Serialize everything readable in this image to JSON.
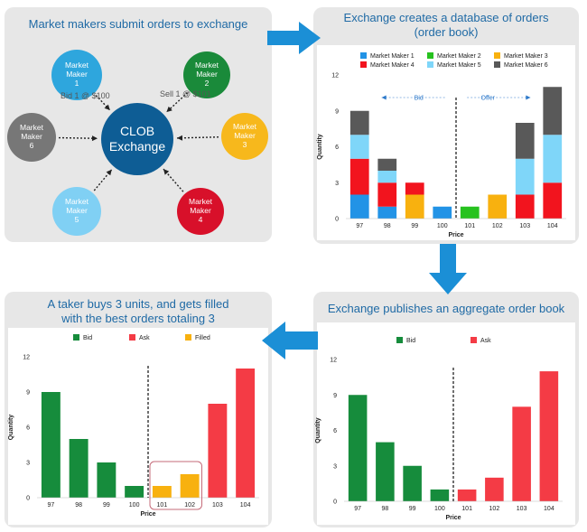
{
  "panels": {
    "p1": {
      "title": "Market makers submit orders to exchange"
    },
    "p2": {
      "title_line1": "Exchange creates a database of orders",
      "title_line2": "(order book)"
    },
    "p3": {
      "title": "Exchange publishes an aggregate order book"
    },
    "p4": {
      "title_line1": "A taker buys 3 units, and gets filled",
      "title_line2": "with the best orders totaling 3"
    }
  },
  "network": {
    "center": {
      "line1": "CLOB",
      "line2": "Exchange",
      "color": "#0e5d95"
    },
    "nodes": [
      {
        "id": "mm1",
        "line1": "Market",
        "line2": "Maker",
        "line3": "1",
        "color": "#2ea6dd"
      },
      {
        "id": "mm2",
        "line1": "Market",
        "line2": "Maker",
        "line3": "2",
        "color": "#1a8a3a"
      },
      {
        "id": "mm3",
        "line1": "Market",
        "line2": "Maker",
        "line3": "3",
        "color": "#f7b81c"
      },
      {
        "id": "mm4",
        "line1": "Market",
        "line2": "Maker",
        "line3": "4",
        "color": "#d8102a"
      },
      {
        "id": "mm5",
        "line1": "Market",
        "line2": "Maker",
        "line3": "5",
        "color": "#80d0f4"
      },
      {
        "id": "mm6",
        "line1": "Market",
        "line2": "Maker",
        "line3": "6",
        "color": "#777777"
      }
    ],
    "labels": {
      "bid": "Bid 1 @ $100",
      "sell": "Sell 1 @ $101"
    }
  },
  "chart_data": [
    {
      "id": "orderbook",
      "type": "bar",
      "stacked": true,
      "categories": [
        "97",
        "98",
        "99",
        "100",
        "101",
        "102",
        "103",
        "104"
      ],
      "series": [
        {
          "name": "Market Maker 1",
          "color": "#2293e6",
          "values": [
            2,
            1,
            0,
            1,
            0,
            0,
            0,
            0
          ]
        },
        {
          "name": "Market Maker 2",
          "color": "#27c21f",
          "values": [
            0,
            0,
            0,
            0,
            1,
            0,
            0,
            0
          ]
        },
        {
          "name": "Market Maker 3",
          "color": "#f8b10f",
          "values": [
            0,
            0,
            2,
            0,
            0,
            2,
            0,
            0
          ]
        },
        {
          "name": "Market Maker 4",
          "color": "#f2141e",
          "values": [
            3,
            2,
            1,
            0,
            0,
            0,
            2,
            3
          ]
        },
        {
          "name": "Market Maker 5",
          "color": "#7fd6f9",
          "values": [
            2,
            1,
            0,
            0,
            0,
            0,
            3,
            4
          ]
        },
        {
          "name": "Market Maker 6",
          "color": "#595959",
          "values": [
            2,
            1,
            0,
            0,
            0,
            0,
            3,
            4
          ]
        }
      ],
      "annotations": {
        "bid": "Bid",
        "offer": "Offer"
      },
      "xlabel": "Price",
      "ylabel": "Quantity",
      "yticks": [
        "0",
        "3",
        "6",
        "9",
        "12"
      ],
      "ylim": [
        0,
        12
      ],
      "legend": "top"
    },
    {
      "id": "aggregate",
      "type": "bar",
      "categories": [
        "97",
        "98",
        "99",
        "100",
        "101",
        "102",
        "103",
        "104"
      ],
      "series": [
        {
          "name": "Bid",
          "color": "#168c3c",
          "values": [
            9,
            5,
            3,
            1,
            0,
            0,
            0,
            0
          ]
        },
        {
          "name": "Ask",
          "color": "#f43b45",
          "values": [
            0,
            0,
            0,
            0,
            1,
            2,
            8,
            11
          ]
        }
      ],
      "xlabel": "Price",
      "ylabel": "Quantity",
      "yticks": [
        "0",
        "3",
        "6",
        "9",
        "12"
      ],
      "ylim": [
        0,
        12
      ],
      "legend": "top"
    },
    {
      "id": "taker",
      "type": "bar",
      "categories": [
        "97",
        "98",
        "99",
        "100",
        "101",
        "102",
        "103",
        "104"
      ],
      "series": [
        {
          "name": "Bid",
          "color": "#168c3c",
          "values": [
            9,
            5,
            3,
            1,
            0,
            0,
            0,
            0
          ]
        },
        {
          "name": "Ask",
          "color": "#f43b45",
          "values": [
            0,
            0,
            0,
            0,
            0,
            0,
            8,
            11
          ]
        },
        {
          "name": "Filled",
          "color": "#f8b10f",
          "values": [
            0,
            0,
            0,
            0,
            1,
            2,
            0,
            0
          ]
        }
      ],
      "xlabel": "Price",
      "ylabel": "Quantity",
      "yticks": [
        "0",
        "3",
        "6",
        "9",
        "12"
      ],
      "ylim": [
        0,
        12
      ],
      "legend": "top",
      "highlight": [
        "101",
        "102"
      ]
    }
  ],
  "arrows": {
    "color": "#1b8fd6"
  }
}
